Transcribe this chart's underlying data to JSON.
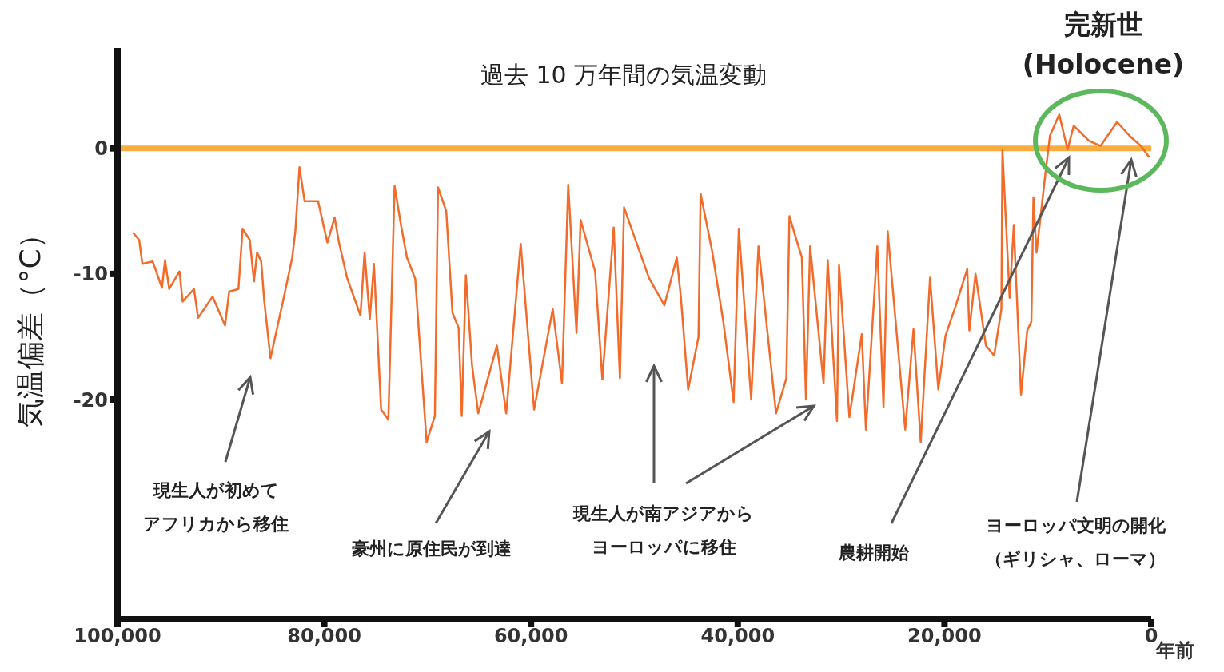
{
  "chart_data": {
    "type": "line",
    "title": "過去 10 万年間の気温変動",
    "xlabel": "年前",
    "ylabel": "気温偏差（°C）",
    "xlim": [
      100000,
      0
    ],
    "ylim": [
      -37.5,
      8
    ],
    "xticks": [
      {
        "value": 100000,
        "label": "100,000"
      },
      {
        "value": 80000,
        "label": "80,000"
      },
      {
        "value": 60000,
        "label": "60,000"
      },
      {
        "value": 40000,
        "label": "40,000"
      },
      {
        "value": 20000,
        "label": "20,000"
      },
      0
    ],
    "yticks": [
      0,
      -10,
      -20
    ],
    "x": [
      98500,
      97900,
      97600,
      96600,
      95700,
      95400,
      95000,
      94000,
      93700,
      92600,
      92200,
      90800,
      89600,
      89200,
      88300,
      87900,
      87200,
      86800,
      86500,
      86100,
      85800,
      85200,
      84000,
      83100,
      82800,
      82400,
      81900,
      80600,
      79700,
      79000,
      78600,
      77800,
      76500,
      76100,
      75600,
      75200,
      74500,
      73800,
      73200,
      72600,
      72000,
      71200,
      70100,
      69300,
      69000,
      68200,
      67600,
      67000,
      66700,
      66300,
      65700,
      65100,
      63300,
      62400,
      61000,
      59700,
      57900,
      57000,
      56400,
      55600,
      55200,
      53800,
      53100,
      52000,
      51400,
      51000,
      48600,
      47100,
      45900,
      45500,
      44800,
      43800,
      43600,
      42500,
      41400,
      40400,
      39900,
      38700,
      38000,
      36300,
      35300,
      35000,
      33800,
      33400,
      33000,
      31700,
      31300,
      30400,
      30200,
      29200,
      28000,
      27600,
      26500,
      25900,
      25500,
      23800,
      23000,
      22300,
      21400,
      20600,
      19900,
      18900,
      17800,
      17600,
      17000,
      16000,
      15200,
      14500,
      14400,
      13700,
      13300,
      12600,
      12000,
      11600,
      11400,
      11100,
      10200,
      9800,
      8900,
      8100,
      7500,
      6000,
      4900,
      3300,
      2100,
      1000,
      200
    ],
    "series": [
      {
        "color": "#f26b2a",
        "values": [
          -6.7,
          -7.3,
          -9.2,
          -9.0,
          -11.1,
          -8.9,
          -11.2,
          -9.8,
          -12.2,
          -11.2,
          -13.5,
          -11.8,
          -14.1,
          -11.4,
          -11.2,
          -6.4,
          -7.3,
          -10.6,
          -8.3,
          -9.0,
          -12.2,
          -16.7,
          -12.2,
          -8.7,
          -6.6,
          -1.5,
          -4.2,
          -4.2,
          -7.5,
          -5.5,
          -7.4,
          -10.3,
          -13.3,
          -8.3,
          -13.6,
          -9.2,
          -20.8,
          -21.6,
          -3.0,
          -6.0,
          -8.7,
          -10.4,
          -23.4,
          -21.3,
          -3.1,
          -5.0,
          -13.1,
          -14.3,
          -21.3,
          -10.1,
          -17.3,
          -21.1,
          -15.7,
          -21.1,
          -7.6,
          -20.8,
          -12.8,
          -18.7,
          -2.9,
          -14.7,
          -5.7,
          -9.8,
          -18.4,
          -6.3,
          -18.3,
          -4.7,
          -10.3,
          -12.5,
          -8.7,
          -11.9,
          -19.2,
          -15.0,
          -3.6,
          -8.1,
          -13.8,
          -20.2,
          -6.4,
          -20.0,
          -7.8,
          -21.1,
          -18.3,
          -5.4,
          -8.7,
          -20.0,
          -7.8,
          -18.7,
          -8.9,
          -21.7,
          -9.3,
          -21.4,
          -14.8,
          -22.4,
          -7.8,
          -20.6,
          -6.6,
          -22.4,
          -14.4,
          -23.4,
          -10.3,
          -19.2,
          -14.9,
          -12.5,
          -9.6,
          -14.5,
          -10.0,
          -15.7,
          -16.5,
          -12.8,
          -0.1,
          -11.9,
          -6.1,
          -19.6,
          -14.5,
          -13.8,
          -3.9,
          -8.3,
          -1.7,
          1.0,
          2.7,
          -0.1,
          1.8,
          0.6,
          0.2,
          2.1,
          1.0,
          0.2,
          -0.7
        ]
      }
    ],
    "ref_lines": [
      {
        "axis": "y",
        "value": 0,
        "color": "#f8ad3e"
      }
    ],
    "annotations": [
      "現生人が初めてアフリカから移住",
      "豪州に原住民が到達",
      "現生人が南アジアからヨーロッパに移住",
      "農耕開始",
      "ヨーロッパ文明の開化（ギリシャ、ローマ）",
      "完新世\n(Holocene)"
    ]
  }
}
